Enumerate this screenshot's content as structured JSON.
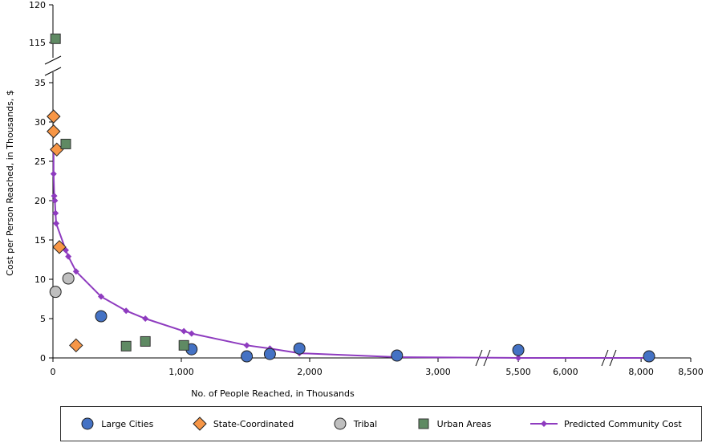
{
  "chart_data": {
    "type": "scatter",
    "xlabel": "No. of People Reached, in Thousands",
    "ylabel": "Cost per Person Reached, in Thousands, $",
    "x_ticks": [
      "0",
      "1,000",
      "2,000",
      "3,000",
      "5,500",
      "6,000",
      "8,000",
      "8,500"
    ],
    "y_ticks": [
      "0",
      "5",
      "10",
      "15",
      "20",
      "25",
      "30",
      "35",
      "115",
      "120"
    ],
    "x_axis_breaks": [
      [
        3300,
        5300
      ],
      [
        6400,
        7700
      ]
    ],
    "y_axis_break": [
      37,
      113
    ],
    "legend_position": "bottom",
    "colors": {
      "large_cities": "#4472c4",
      "state_coordinated": "#f79646",
      "tribal": "#bfbfbf",
      "urban_areas": "#5f8a63",
      "predicted": "#8e3bbf"
    },
    "series": [
      {
        "name": "Large Cities",
        "marker": "circle",
        "points": [
          [
            375,
            5.3
          ],
          [
            1080,
            1.1
          ],
          [
            1510,
            0.2
          ],
          [
            1690,
            0.5
          ],
          [
            1920,
            1.2
          ],
          [
            2680,
            0.3
          ],
          [
            5500,
            1.0
          ],
          [
            8080,
            0.2
          ]
        ]
      },
      {
        "name": "State-Coordinated",
        "marker": "diamond",
        "points": [
          [
            5,
            30.7
          ],
          [
            5,
            28.8
          ],
          [
            30,
            26.5
          ],
          [
            50,
            14.1
          ],
          [
            180,
            1.6
          ]
        ]
      },
      {
        "name": "Tribal",
        "marker": "circle",
        "points": [
          [
            20,
            8.4
          ],
          [
            120,
            10.1
          ]
        ]
      },
      {
        "name": "Urban Areas",
        "marker": "square",
        "points": [
          [
            20,
            115.5
          ],
          [
            100,
            27.2
          ],
          [
            570,
            1.5
          ],
          [
            720,
            2.1
          ],
          [
            1020,
            1.6
          ]
        ]
      },
      {
        "name": "Predicted Community Cost",
        "marker": "line",
        "points": [
          [
            5,
            26.4
          ],
          [
            5,
            23.4
          ],
          [
            10,
            20.6
          ],
          [
            15,
            20.0
          ],
          [
            20,
            18.4
          ],
          [
            25,
            17.1
          ],
          [
            100,
            13.7
          ],
          [
            120,
            12.9
          ],
          [
            180,
            11.0
          ],
          [
            375,
            7.8
          ],
          [
            570,
            6.0
          ],
          [
            720,
            5.0
          ],
          [
            1020,
            3.4
          ],
          [
            1080,
            3.1
          ],
          [
            1510,
            1.6
          ],
          [
            1690,
            1.2
          ],
          [
            1920,
            0.6
          ],
          [
            2680,
            0.1
          ],
          [
            5500,
            0
          ],
          [
            8080,
            0
          ]
        ]
      }
    ]
  }
}
